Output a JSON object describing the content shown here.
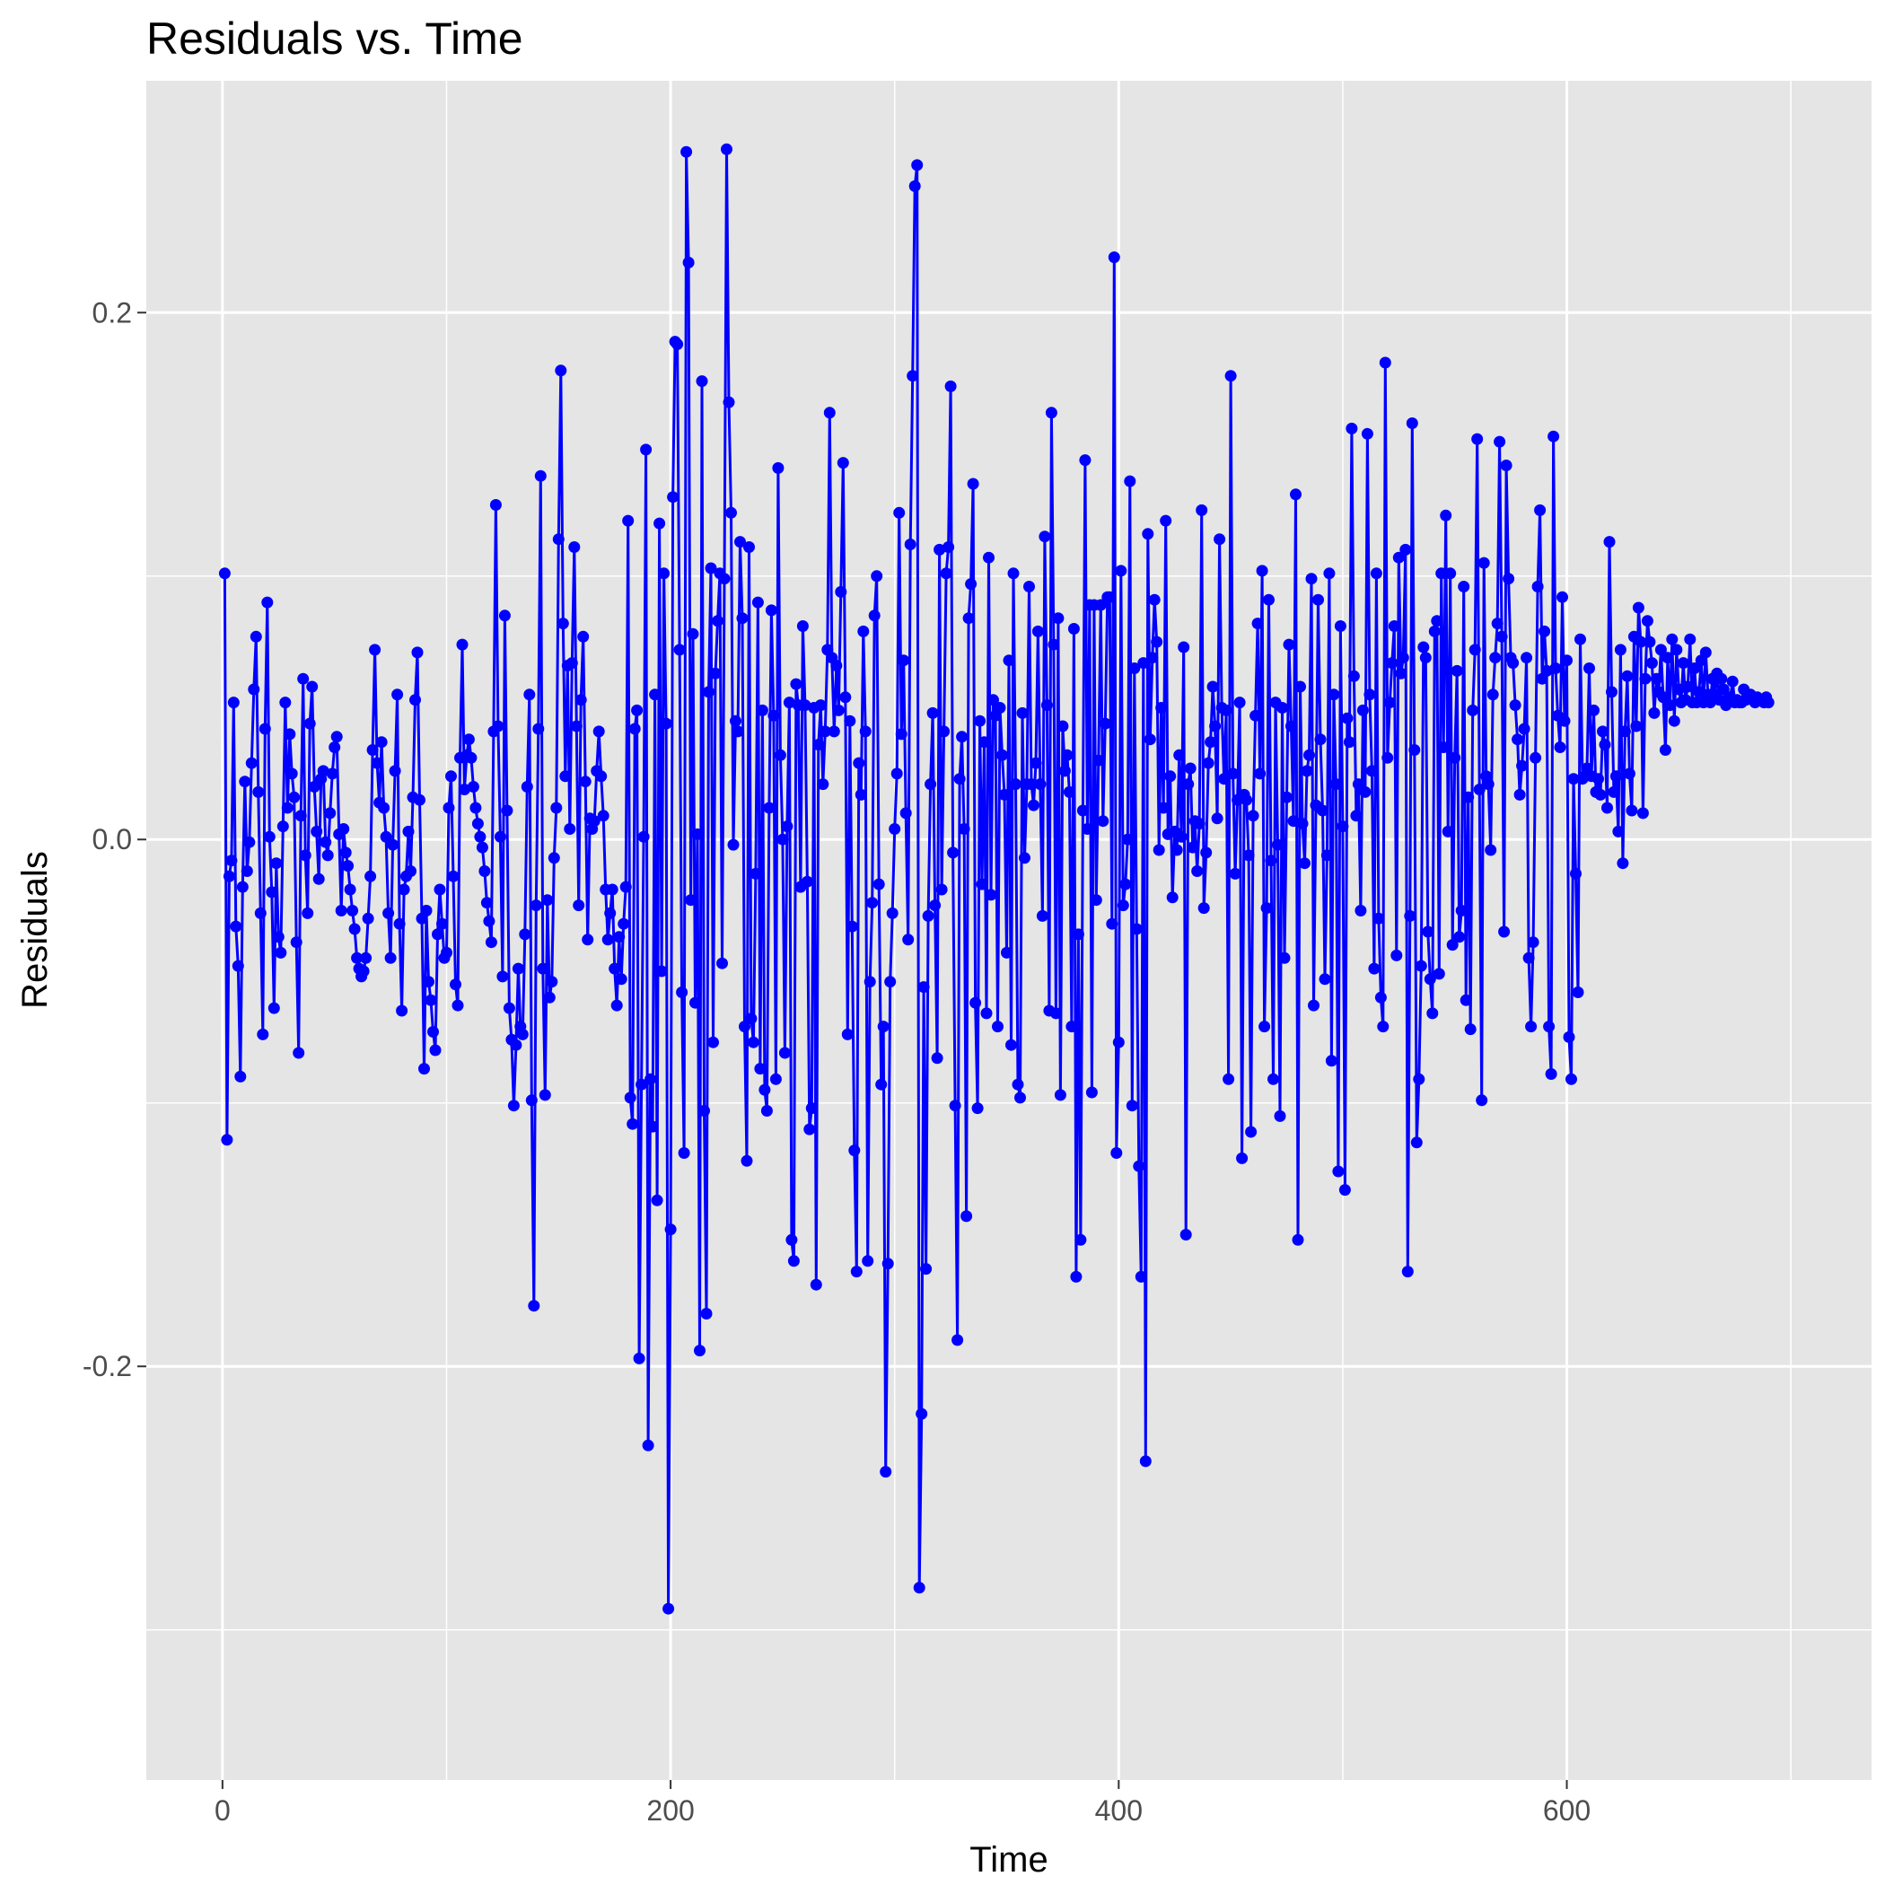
{
  "chart_data": {
    "type": "line",
    "title": "Residuals vs. Time",
    "xlabel": "Time",
    "ylabel": "Residuals",
    "xlim": [
      -34,
      736
    ],
    "ylim": [
      -0.357,
      0.288
    ],
    "x_ticks": [
      0,
      200,
      400,
      600
    ],
    "x_tick_labels": [
      "0",
      "200",
      "400",
      "600"
    ],
    "y_ticks": [
      -0.2,
      0.0,
      0.2
    ],
    "y_tick_labels": [
      "-0.2",
      "0.0",
      "0.2"
    ],
    "background": "#e5e5e5",
    "grid": true,
    "legend": "none",
    "series": [
      {
        "color": "#0000ff",
        "markers": true,
        "x_start": 1,
        "x_step": 1,
        "values": [
          0.101,
          -0.114,
          -0.014,
          -0.008,
          0.052,
          -0.033,
          -0.048,
          -0.09,
          -0.018,
          0.022,
          -0.012,
          -0.001,
          0.029,
          0.057,
          0.077,
          0.018,
          -0.028,
          -0.074,
          0.042,
          0.09,
          0.001,
          -0.02,
          -0.064,
          -0.009,
          -0.037,
          -0.043,
          0.005,
          0.052,
          0.012,
          0.04,
          0.025,
          0.016,
          -0.039,
          -0.081,
          0.009,
          0.061,
          -0.006,
          -0.028,
          0.044,
          0.058,
          0.02,
          0.003,
          -0.015,
          0.023,
          0.026,
          -0.001,
          -0.006,
          0.01,
          0.025,
          0.035,
          0.039,
          0.002,
          -0.027,
          0.004,
          -0.005,
          -0.01,
          -0.019,
          -0.027,
          -0.034,
          -0.045,
          -0.049,
          -0.052,
          -0.05,
          -0.045,
          -0.03,
          -0.014,
          0.034,
          0.072,
          0.029,
          0.014,
          0.037,
          0.012,
          0.001,
          -0.028,
          -0.045,
          -0.002,
          0.026,
          0.055,
          -0.032,
          -0.065,
          -0.019,
          -0.014,
          0.003,
          -0.012,
          0.016,
          0.053,
          0.071,
          0.015,
          -0.03,
          -0.087,
          -0.027,
          -0.054,
          -0.061,
          -0.073,
          -0.08,
          -0.036,
          -0.019,
          -0.032,
          -0.045,
          -0.043,
          0.012,
          0.024,
          -0.014,
          -0.055,
          -0.063,
          0.031,
          0.074,
          0.019,
          0.032,
          0.038,
          0.031,
          0.02,
          0.012,
          0.006,
          0.001,
          -0.003,
          -0.012,
          -0.024,
          -0.031,
          -0.039,
          0.041,
          0.127,
          0.043,
          0.001,
          -0.052,
          0.085,
          0.011,
          -0.064,
          -0.076,
          -0.101,
          -0.078,
          -0.049,
          -0.071,
          -0.074,
          -0.036,
          0.02,
          0.055,
          -0.099,
          -0.177,
          -0.025,
          0.042,
          0.138,
          -0.049,
          -0.097,
          -0.023,
          -0.06,
          -0.054,
          -0.007,
          0.012,
          0.114,
          0.178,
          0.082,
          0.024,
          0.066,
          0.004,
          0.067,
          0.111,
          0.043,
          -0.025,
          0.053,
          0.077,
          0.022,
          -0.038,
          0.008,
          0.004,
          0.007,
          0.026,
          0.041,
          0.024,
          0.009,
          -0.019,
          -0.038,
          -0.028,
          -0.019,
          -0.049,
          -0.063,
          -0.037,
          -0.053,
          -0.032,
          -0.018,
          0.121,
          -0.098,
          -0.108,
          0.042,
          0.049,
          -0.197,
          -0.093,
          0.001,
          0.148,
          -0.23,
          -0.091,
          -0.109,
          0.055,
          -0.137,
          0.12,
          -0.05,
          0.101,
          0.044,
          -0.292,
          -0.148,
          0.13,
          0.189,
          0.188,
          0.072,
          -0.058,
          -0.119,
          0.261,
          0.219,
          -0.023,
          0.078,
          -0.062,
          0.002,
          -0.194,
          0.174,
          -0.103,
          -0.18,
          0.056,
          0.103,
          -0.077,
          0.063,
          0.083,
          0.101,
          -0.047,
          0.099,
          0.262,
          0.166,
          0.124,
          -0.002,
          0.045,
          0.041,
          0.113,
          0.084,
          -0.071,
          -0.122,
          0.111,
          -0.068,
          -0.077,
          -0.013,
          0.09,
          -0.087,
          0.049,
          -0.095,
          -0.103,
          0.012,
          0.087,
          0.047,
          -0.091,
          0.141,
          0.032,
          0.0,
          -0.081,
          0.005,
          0.052,
          -0.152,
          -0.16,
          0.059,
          0.051,
          -0.018,
          0.081,
          0.051,
          -0.016,
          -0.11,
          -0.102,
          0.05,
          -0.169,
          0.036,
          0.051,
          0.021,
          0.041,
          0.072,
          0.162,
          0.069,
          0.041,
          0.066,
          0.049,
          0.094,
          0.143,
          0.054,
          -0.074,
          0.045,
          -0.033,
          -0.118,
          -0.164,
          0.029,
          0.017,
          0.079,
          0.041,
          -0.16,
          -0.054,
          -0.024,
          0.085,
          0.1,
          -0.017,
          -0.093,
          -0.071,
          -0.24,
          -0.161,
          -0.054,
          -0.028,
          0.004,
          0.025,
          0.124,
          0.04,
          0.068,
          0.01,
          -0.038,
          0.112,
          0.176,
          0.248,
          0.256,
          -0.284,
          -0.218,
          -0.056,
          -0.163,
          -0.029,
          0.021,
          0.048,
          -0.025,
          -0.083,
          0.11,
          -0.019,
          0.041,
          0.101,
          0.111,
          0.172,
          -0.005,
          -0.101,
          -0.19,
          0.023,
          0.039,
          0.004,
          -0.143,
          0.084,
          0.097,
          0.135,
          -0.062,
          -0.102,
          0.045,
          -0.017,
          0.037,
          -0.066,
          0.107,
          -0.021,
          0.053,
          0.047,
          -0.071,
          0.05,
          0.032,
          0.017,
          -0.043,
          0.068,
          -0.078,
          0.101,
          0.021,
          -0.093,
          -0.098,
          0.048,
          -0.007,
          0.021,
          0.096,
          0.021,
          0.013,
          0.029,
          0.079,
          0.021,
          -0.029,
          0.115,
          0.051,
          -0.065,
          0.162,
          0.074,
          -0.066,
          0.084,
          -0.097,
          0.043,
          0.026,
          0.032,
          0.018,
          -0.071,
          0.08,
          -0.166,
          -0.036,
          -0.152,
          0.011,
          0.144,
          0.004,
          0.089,
          -0.096,
          0.089,
          -0.023,
          0.03,
          0.089,
          0.007,
          0.044,
          0.092,
          0.092,
          -0.032,
          0.221,
          -0.119,
          -0.077,
          0.102,
          -0.025,
          -0.017,
          0.0,
          0.136,
          -0.101,
          0.065,
          -0.034,
          -0.124,
          -0.166,
          0.067,
          -0.236,
          0.116,
          0.038,
          0.069,
          0.091,
          0.075,
          -0.004,
          0.05,
          0.012,
          0.121,
          0.002,
          0.024,
          -0.022,
          0.003,
          -0.004,
          0.032,
          0.001,
          0.073,
          -0.15,
          0.021,
          0.027,
          -0.003,
          0.007,
          -0.012,
          0.006,
          0.125,
          -0.026,
          -0.005,
          0.029,
          0.037,
          0.058,
          0.043,
          0.008,
          0.114,
          0.05,
          0.023,
          0.049,
          -0.091,
          0.176,
          0.025,
          -0.013,
          0.015,
          0.052,
          -0.121,
          0.017,
          0.015,
          -0.006,
          -0.111,
          0.009,
          0.047,
          0.082,
          0.025,
          0.102,
          -0.071,
          -0.026,
          0.091,
          -0.008,
          -0.091,
          0.052,
          -0.002,
          -0.105,
          0.05,
          -0.045,
          0.016,
          0.074,
          0.043,
          0.007,
          0.131,
          -0.152,
          0.058,
          0.006,
          -0.009,
          0.026,
          0.032,
          0.099,
          -0.063,
          0.013,
          0.091,
          0.038,
          0.011,
          -0.053,
          -0.006,
          0.101,
          -0.084,
          0.055,
          0.021,
          -0.126,
          0.081,
          0.005,
          -0.133,
          0.046,
          0.037,
          0.156,
          0.062,
          0.009,
          0.021,
          -0.027,
          0.049,
          0.018,
          0.154,
          0.055,
          0.026,
          -0.049,
          0.101,
          -0.03,
          -0.06,
          -0.071,
          0.181,
          0.031,
          0.052,
          0.067,
          0.081,
          -0.044,
          0.107,
          0.063,
          0.069,
          0.11,
          -0.164,
          -0.029,
          0.158,
          0.034,
          -0.115,
          -0.091,
          -0.048,
          0.073,
          0.069,
          -0.035,
          -0.053,
          -0.066,
          0.079,
          0.083,
          -0.051,
          0.101,
          0.035,
          0.123,
          0.003,
          0.101,
          -0.04,
          0.031,
          0.064,
          -0.037,
          -0.027,
          0.096,
          -0.061,
          0.016,
          -0.072,
          0.049,
          0.072,
          0.152,
          0.019,
          -0.099,
          0.105,
          0.024,
          0.021,
          -0.004,
          0.055,
          0.069,
          0.082,
          0.151,
          0.077,
          -0.035,
          0.142,
          0.099,
          0.069,
          0.067,
          0.051,
          0.038,
          0.017,
          0.028,
          0.042,
          0.069,
          -0.045,
          -0.071,
          -0.039,
          0.031,
          0.096,
          0.125,
          0.061,
          0.079,
          0.064,
          -0.071,
          -0.089,
          0.153,
          0.065,
          0.047,
          0.035,
          0.092,
          0.045,
          0.068,
          -0.075,
          -0.091,
          0.023,
          -0.013,
          -0.058,
          0.076,
          0.023,
          0.024,
          0.027,
          0.065,
          0.024,
          0.049,
          0.018,
          0.023,
          0.017,
          0.041,
          0.036,
          0.012,
          0.113,
          0.056,
          0.018,
          0.024,
          0.003,
          0.072,
          -0.009,
          0.041,
          0.062,
          0.025,
          0.011,
          0.077,
          0.043,
          0.088,
          0.075,
          0.01,
          0.061,
          0.083,
          0.075,
          0.067,
          0.048,
          0.061,
          0.056,
          0.072,
          0.054,
          0.034,
          0.069,
          0.051,
          0.076,
          0.045,
          0.072,
          0.057,
          0.052,
          0.067,
          0.053,
          0.058,
          0.076,
          0.052,
          0.065,
          0.052,
          0.056,
          0.068,
          0.052,
          0.071,
          0.055,
          0.052,
          0.061,
          0.055,
          0.063,
          0.053,
          0.061,
          0.057,
          0.051,
          0.052,
          0.054,
          0.06,
          0.052,
          0.053,
          0.052,
          0.052,
          0.057,
          0.053,
          0.054,
          0.055,
          0.054,
          0.052,
          0.054,
          0.053,
          0.053,
          0.052,
          0.054,
          0.052
        ]
      }
    ]
  }
}
